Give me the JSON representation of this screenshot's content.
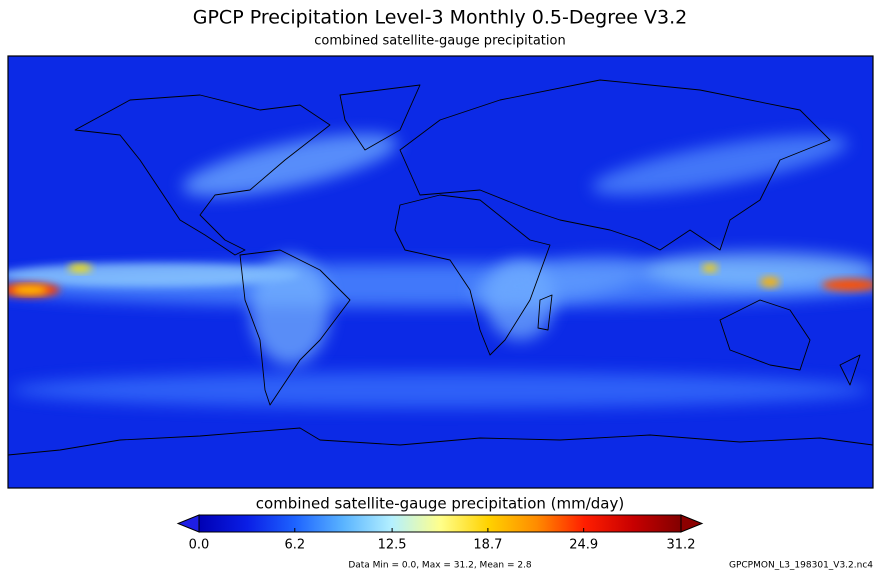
{
  "header": {
    "title": "GPCP Precipitation Level-3 Monthly 0.5-Degree V3.2",
    "subtitle": "combined satellite-gauge precipitation"
  },
  "colorbar": {
    "label": "combined satellite-gauge precipitation (mm/day)",
    "lim": [
      0,
      31.2
    ],
    "ticks": [
      {
        "value": 0,
        "label": "0.0"
      },
      6.2,
      12.5,
      18.7,
      24.9,
      31.2
    ],
    "colors": [
      "#0000b4",
      "#0a1ee6",
      "#1e64ff",
      "#5ab4ff",
      "#b4f0ff",
      "#ffff8c",
      "#ffd200",
      "#ff8c00",
      "#ff1e00",
      "#c80000",
      "#820000"
    ],
    "under_color": "#1e1ee6",
    "over_color": "#8c0000"
  },
  "footer": {
    "stats": "Data Min = 0.0, Max = 31.2, Mean = 2.8",
    "filename": "GPCPMON_L3_198301_V3.2.nc4"
  }
}
